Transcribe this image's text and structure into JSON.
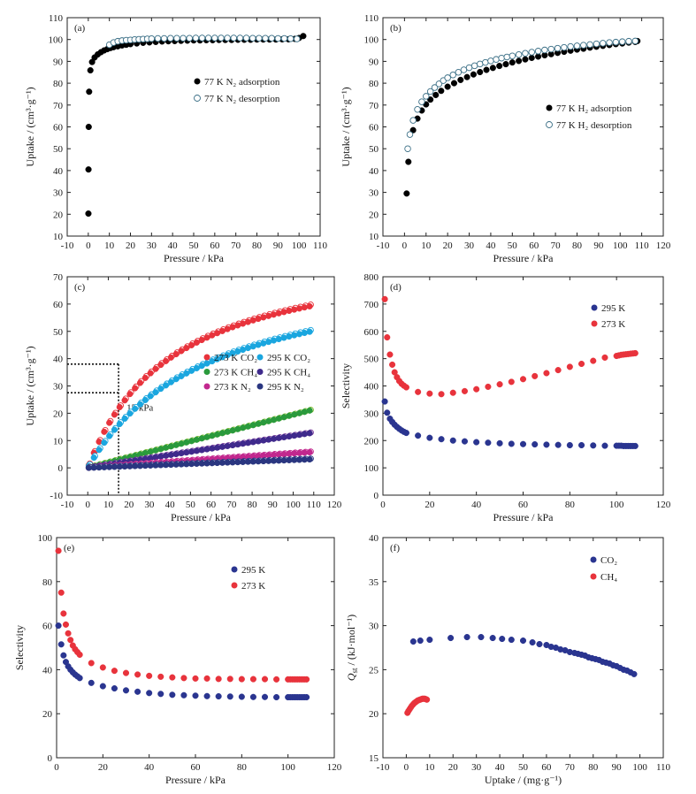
{
  "chart_data": [
    {
      "panel": "(a)",
      "type": "scatter",
      "xlabel": "Pressure / kPa",
      "ylabel": "Uptake / (cm³·g⁻¹)",
      "xlim": [
        -10,
        110
      ],
      "ylim": [
        10,
        110
      ],
      "xticks": [
        -10,
        0,
        10,
        20,
        30,
        40,
        50,
        60,
        70,
        80,
        90,
        100,
        110
      ],
      "yticks": [
        10,
        20,
        30,
        40,
        50,
        60,
        70,
        80,
        90,
        100,
        110
      ],
      "legend_position": "middle-right",
      "series": [
        {
          "name": "77 K N₂ adsorption",
          "marker": "filled",
          "color": "#000000",
          "x": [
            0.05,
            0.1,
            0.2,
            0.4,
            1,
            1.8,
            3,
            4.5,
            6,
            7.5,
            9,
            10.5,
            12,
            14,
            16,
            18,
            20,
            23,
            26,
            29,
            32,
            35,
            38,
            41,
            44,
            47,
            50,
            53,
            56,
            59,
            62,
            65,
            68,
            71,
            74,
            77,
            80,
            83,
            86,
            89,
            92,
            95,
            98,
            100,
            102
          ],
          "y": [
            20.3,
            40.5,
            60,
            76.1,
            85.9,
            89.7,
            91.8,
            93.2,
            94.2,
            95,
            95.6,
            96.1,
            96.5,
            96.9,
            97.3,
            97.6,
            97.9,
            98.2,
            98.5,
            98.7,
            98.9,
            99.1,
            99.2,
            99.3,
            99.4,
            99.5,
            99.6,
            99.6,
            99.7,
            99.7,
            99.8,
            99.8,
            99.8,
            99.9,
            99.9,
            99.9,
            100,
            100,
            100,
            100,
            100.1,
            100.1,
            100.3,
            100.7,
            101.6
          ]
        },
        {
          "name": "77 K N₂ desorption",
          "marker": "open",
          "color": "#3b6f86",
          "x": [
            10,
            12,
            14,
            16,
            18,
            20,
            22,
            24,
            26,
            28,
            30,
            33,
            36,
            39,
            42,
            45,
            48,
            51,
            54,
            57,
            60,
            63,
            66,
            69,
            72,
            75,
            78,
            81,
            84,
            87,
            90,
            93,
            96,
            99
          ],
          "y": [
            97.6,
            98.6,
            99.2,
            99.5,
            99.7,
            99.8,
            100,
            100.1,
            100.2,
            100.3,
            100.4,
            100.5,
            100.5,
            100.6,
            100.6,
            100.6,
            100.6,
            100.7,
            100.7,
            100.7,
            100.7,
            100.7,
            100.7,
            100.7,
            100.7,
            100.7,
            100.6,
            100.6,
            100.6,
            100.6,
            100.5,
            100.5,
            100.4,
            100.3
          ]
        }
      ]
    },
    {
      "panel": "(b)",
      "type": "scatter",
      "xlabel": "Pressure / kPa",
      "ylabel": "Uptake / (cm³·g⁻¹)",
      "xlim": [
        -10,
        120
      ],
      "ylim": [
        10,
        110
      ],
      "xticks": [
        -10,
        0,
        10,
        20,
        30,
        40,
        50,
        60,
        70,
        80,
        90,
        100,
        110,
        120
      ],
      "yticks": [
        10,
        20,
        30,
        40,
        50,
        60,
        70,
        80,
        90,
        100,
        110
      ],
      "legend_position": "middle-right",
      "series": [
        {
          "name": "77 K H₂ adsorption",
          "marker": "filled",
          "color": "#000000",
          "x": [
            1,
            1.8,
            4,
            6,
            8,
            10,
            12,
            14.5,
            17,
            20,
            23,
            26,
            29,
            32,
            35,
            38,
            41,
            44,
            47,
            50,
            53,
            56,
            59,
            62,
            65,
            68,
            71,
            74,
            77,
            80,
            83,
            86,
            89,
            92,
            95,
            98,
            101,
            104,
            107,
            108
          ],
          "y": [
            29.5,
            44,
            58.5,
            63.8,
            67.5,
            70.3,
            72.5,
            74.6,
            76.5,
            78.4,
            80,
            81.5,
            82.8,
            84,
            85.1,
            86.1,
            87,
            87.9,
            88.7,
            89.5,
            90.2,
            90.9,
            91.6,
            92.2,
            92.8,
            93.3,
            93.9,
            94.4,
            94.9,
            95.4,
            95.8,
            96.3,
            96.7,
            97.1,
            97.5,
            97.9,
            98.2,
            98.6,
            98.9,
            99.3
          ]
        },
        {
          "name": "77 K H₂ desorption",
          "marker": "open",
          "color": "#3b6f86",
          "x": [
            1.5,
            2.5,
            4,
            6,
            8,
            10,
            12,
            14,
            16,
            18,
            20,
            22.5,
            25,
            27.5,
            30,
            32.5,
            35,
            37.5,
            40,
            42.5,
            45,
            47.5,
            50,
            53,
            56,
            59,
            62,
            65,
            68,
            71,
            74,
            77,
            80,
            83,
            86,
            89,
            92,
            95,
            98,
            101,
            104,
            107
          ],
          "y": [
            50,
            56.5,
            63,
            68,
            71.5,
            74,
            76.2,
            78,
            79.7,
            81.2,
            82.5,
            83.8,
            85,
            86.1,
            87.1,
            88,
            88.8,
            89.5,
            90.2,
            90.9,
            91.5,
            92,
            92.5,
            93.1,
            93.7,
            94.2,
            94.7,
            95.2,
            95.6,
            96,
            96.4,
            96.8,
            97.1,
            97.4,
            97.7,
            98,
            98.3,
            98.6,
            98.8,
            99,
            99.2,
            99.3
          ]
        }
      ]
    },
    {
      "panel": "(c)",
      "type": "scatter",
      "xlabel": "Pressure / kPa",
      "ylabel": "Uptake / (cm³·g⁻¹)",
      "xlim": [
        -10,
        120
      ],
      "ylim": [
        -10,
        70
      ],
      "xticks": [
        -10,
        0,
        10,
        20,
        30,
        40,
        50,
        60,
        70,
        80,
        90,
        100,
        110,
        120
      ],
      "yticks": [
        -10,
        0,
        10,
        20,
        30,
        40,
        50,
        60,
        70
      ],
      "annotation": "15 kPa",
      "guide_x": 15,
      "guide_y": [
        38,
        27.5
      ],
      "legend_position": "center-right",
      "series": [
        {
          "name": "273 K CO₂",
          "color": "#e8333c",
          "marker": "filled",
          "a": 82,
          "b": 0.024,
          "n": 44
        },
        {
          "name": "295 K CO₂",
          "color": "#1aa6df",
          "marker": "filled",
          "a": 77,
          "b": 0.017,
          "n": 44
        },
        {
          "name": "273 K CH₄",
          "color": "#2a9a3c",
          "open_color": "#7dbb2b",
          "marker": "filled",
          "a": 21,
          "b": 0,
          "n": 44
        },
        {
          "name": "295 K CH₄",
          "color": "#3f2a8c",
          "open_color": "#7c3c9c",
          "marker": "filled",
          "a": 12.7,
          "b": 0,
          "n": 44
        },
        {
          "name": "273 K N₂",
          "color": "#c2288e",
          "marker": "filled",
          "a": 5.7,
          "b": 0,
          "n": 44
        },
        {
          "name": "295 K N₂",
          "color": "#2a3680",
          "marker": "filled",
          "a": 3.1,
          "b": 0,
          "n": 44
        }
      ]
    },
    {
      "panel": "(d)",
      "type": "scatter",
      "xlabel": "Pressure / kPa",
      "ylabel": "Selectivity",
      "xlim": [
        0,
        120
      ],
      "ylim": [
        0,
        800
      ],
      "xticks": [
        0,
        20,
        40,
        60,
        80,
        100,
        120
      ],
      "yticks": [
        0,
        100,
        200,
        300,
        400,
        500,
        600,
        700,
        800
      ],
      "legend_position": "top-right",
      "series": [
        {
          "name": "295 K",
          "color": "#2a3590",
          "x": [
            0.8,
            1.8,
            3,
            4,
            5,
            6,
            7,
            8,
            9,
            10,
            15,
            20,
            25,
            30,
            35,
            40,
            45,
            50,
            55,
            60,
            65,
            70,
            75,
            80,
            85,
            90,
            95,
            100,
            101,
            102,
            103,
            104,
            105,
            106,
            107,
            108
          ],
          "y": [
            343,
            302,
            280,
            268,
            258,
            250,
            243,
            237,
            232,
            228,
            218,
            210,
            205,
            200,
            197,
            194,
            192,
            190,
            188,
            187,
            186,
            185,
            184,
            183,
            183,
            182,
            181,
            181,
            181,
            181,
            180,
            180,
            180,
            180,
            180,
            180
          ]
        },
        {
          "name": "273 K",
          "color": "#e8333c",
          "x": [
            0.8,
            1.8,
            3,
            4,
            5,
            6,
            7,
            8,
            9,
            10,
            15,
            20,
            25,
            30,
            35,
            40,
            45,
            50,
            55,
            60,
            65,
            70,
            75,
            80,
            85,
            90,
            95,
            100,
            101,
            102,
            103,
            104,
            105,
            106,
            107,
            108
          ],
          "y": [
            718,
            578,
            515,
            478,
            450,
            432,
            418,
            408,
            401,
            395,
            378,
            372,
            370,
            375,
            381,
            388,
            397,
            406,
            415,
            425,
            436,
            447,
            458,
            470,
            481,
            492,
            504,
            510,
            512,
            514,
            515,
            516,
            517,
            518,
            519,
            520
          ]
        }
      ]
    },
    {
      "panel": "(e)",
      "type": "scatter",
      "xlabel": "Pressure / kPa",
      "ylabel": "Selectivity",
      "xlim": [
        0,
        120
      ],
      "ylim": [
        0,
        100
      ],
      "xticks": [
        0,
        20,
        40,
        60,
        80,
        100,
        120
      ],
      "yticks": [
        0,
        20,
        40,
        60,
        80,
        100
      ],
      "legend_position": "top-right",
      "series": [
        {
          "name": "295 K",
          "color": "#2a3590",
          "x": [
            0.8,
            2,
            3,
            4,
            5,
            6,
            7,
            8,
            9,
            10,
            15,
            20,
            25,
            30,
            35,
            40,
            45,
            50,
            55,
            60,
            65,
            70,
            75,
            80,
            85,
            90,
            95,
            100,
            101,
            102,
            103,
            104,
            105,
            106,
            107,
            108
          ],
          "y": [
            60,
            51.5,
            46.5,
            43.5,
            41.5,
            40,
            38.8,
            37.8,
            37,
            36.2,
            34,
            32.5,
            31.5,
            30.6,
            30,
            29.4,
            29,
            28.6,
            28.4,
            28.2,
            28,
            27.9,
            27.8,
            27.7,
            27.6,
            27.6,
            27.5,
            27.5,
            27.5,
            27.5,
            27.5,
            27.5,
            27.5,
            27.5,
            27.5,
            27.5
          ]
        },
        {
          "name": "273 K",
          "color": "#e8333c",
          "x": [
            0.8,
            2,
            3,
            4,
            5,
            6,
            7,
            8,
            9,
            10,
            15,
            20,
            25,
            30,
            35,
            40,
            45,
            50,
            55,
            60,
            65,
            70,
            75,
            80,
            85,
            90,
            95,
            100,
            101,
            102,
            103,
            104,
            105,
            106,
            107,
            108
          ],
          "y": [
            94,
            75,
            65.5,
            60.5,
            56.5,
            53.5,
            51,
            49.3,
            48,
            46.8,
            43,
            41,
            39.5,
            38.5,
            37.8,
            37.2,
            36.8,
            36.5,
            36.2,
            36,
            36,
            35.8,
            35.8,
            35.7,
            35.7,
            35.7,
            35.6,
            35.6,
            35.6,
            35.6,
            35.6,
            35.6,
            35.6,
            35.6,
            35.6,
            35.6
          ]
        }
      ]
    },
    {
      "panel": "(f)",
      "type": "scatter",
      "xlabel": "Uptake / (mg·g⁻¹)",
      "ylabel": "Qst / (kJ·mol⁻¹)",
      "ylabel_main": "Q",
      "ylabel_sub": "st",
      "ylabel_rest": " / (kJ·mol⁻¹)",
      "xlim": [
        -10,
        110
      ],
      "ylim": [
        15,
        40
      ],
      "xticks": [
        -10,
        0,
        10,
        20,
        30,
        40,
        50,
        60,
        70,
        80,
        90,
        100,
        110
      ],
      "yticks": [
        15,
        20,
        25,
        30,
        35,
        40
      ],
      "legend_position": "top-right",
      "series": [
        {
          "name": "CO₂",
          "color": "#2a3590",
          "x": [
            3,
            6,
            10,
            19,
            26,
            32,
            37,
            41,
            45,
            50,
            54,
            57,
            60,
            62,
            64,
            66,
            68,
            70,
            72,
            73.5,
            75,
            76.5,
            78,
            79.5,
            81,
            82.5,
            84,
            85.5,
            87,
            88.5,
            90,
            91.5,
            93,
            94.5,
            96,
            97.5
          ],
          "y": [
            28.2,
            28.3,
            28.4,
            28.6,
            28.7,
            28.7,
            28.6,
            28.5,
            28.4,
            28.3,
            28.1,
            27.9,
            27.8,
            27.6,
            27.5,
            27.3,
            27.2,
            27,
            26.9,
            26.8,
            26.7,
            26.6,
            26.4,
            26.3,
            26.2,
            26.1,
            25.9,
            25.8,
            25.7,
            25.5,
            25.4,
            25.2,
            25,
            24.9,
            24.7,
            24.5
          ]
        },
        {
          "name": "CH₄",
          "color": "#e8333c",
          "x": [
            0.5,
            0.9,
            1.4,
            1.9,
            2.4,
            2.9,
            3.4,
            3.9,
            4.4,
            4.9,
            5.4,
            5.9,
            6.4,
            6.9,
            7.4,
            7.9,
            8.4,
            8.8
          ],
          "y": [
            20.1,
            20.3,
            20.5,
            20.7,
            20.9,
            21.05,
            21.2,
            21.3,
            21.4,
            21.5,
            21.55,
            21.6,
            21.65,
            21.7,
            21.7,
            21.7,
            21.65,
            21.6
          ]
        }
      ]
    }
  ]
}
